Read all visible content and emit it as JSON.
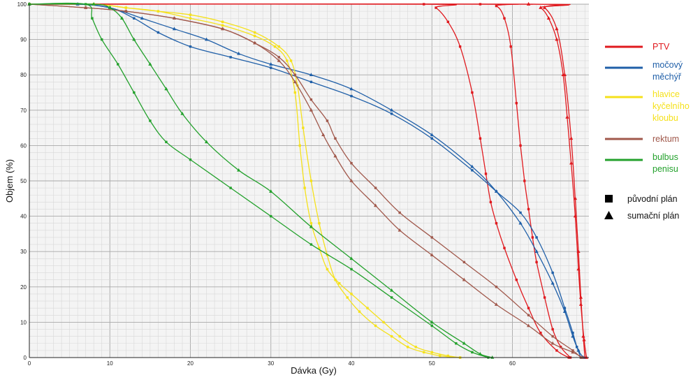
{
  "chart_data": {
    "type": "line",
    "xlabel": "Dávka (Gy)",
    "ylabel": "Objem (%)",
    "xlim": [
      0,
      69.5
    ],
    "ylim": [
      0,
      100
    ],
    "x_ticks": [
      0,
      10,
      20,
      30,
      40,
      50,
      60
    ],
    "y_ticks": [
      0,
      10,
      20,
      30,
      40,
      50,
      60,
      70,
      80,
      90,
      100
    ],
    "grid": true,
    "legend_position": "right",
    "marker_legend": [
      {
        "marker": "square",
        "label": "původní plán"
      },
      {
        "marker": "triangle",
        "label": "sumační plán"
      }
    ],
    "series": [
      {
        "name": "PTV",
        "legend_lines": [
          "PTV"
        ],
        "color": "#e0191e",
        "plan": "original",
        "x": [
          0,
          56,
          58,
          59,
          59.8,
          60.5,
          61,
          61.5,
          62,
          62.5,
          63,
          64,
          65,
          66,
          67.2
        ],
        "y": [
          100,
          100,
          99.5,
          96,
          88,
          72,
          60,
          50,
          42,
          34,
          27,
          17,
          8,
          3,
          0
        ]
      },
      {
        "name": "PTV",
        "color": "#e0191e",
        "plan": "summed",
        "x": [
          0,
          62,
          63.5,
          64.5,
          65.5,
          66.3,
          66.8,
          67.3,
          67.8,
          68.2,
          68.5,
          68.9,
          69.2
        ],
        "y": [
          100,
          100,
          99,
          96,
          90,
          80,
          68,
          55,
          40,
          25,
          15,
          5,
          0
        ]
      },
      {
        "name": "PTV",
        "color": "#e0191e",
        "plan": "original",
        "x": [
          0,
          49,
          50.5,
          52,
          53.5,
          55,
          56,
          56.7,
          57.3,
          58,
          59,
          60.5,
          62,
          63.5,
          65.5,
          67
        ],
        "y": [
          100,
          100,
          99,
          95,
          88,
          75,
          62,
          52,
          44,
          38,
          31,
          22,
          14,
          7,
          2,
          0
        ]
      },
      {
        "name": "PTV",
        "color": "#e0191e",
        "plan": "summed",
        "x": [
          0,
          62,
          64,
          65.5,
          66.5,
          67.3,
          67.8,
          68.2,
          68.5,
          68.8,
          69
        ],
        "y": [
          100,
          100,
          99,
          93,
          80,
          62,
          45,
          30,
          17,
          6,
          0
        ]
      },
      {
        "name": "močový měchýř",
        "legend_lines": [
          "močový",
          "měchýř"
        ],
        "color": "#1f5fa8",
        "plan": "original",
        "x": [
          0,
          6,
          10,
          13,
          16,
          20,
          25,
          30,
          35,
          40,
          45,
          50,
          55,
          58,
          61,
          63,
          65,
          66.5,
          67.5,
          68,
          68.5
        ],
        "y": [
          100,
          100,
          99,
          96,
          92,
          88,
          85,
          82,
          78,
          74,
          69,
          62,
          53,
          47,
          41,
          34,
          24,
          14,
          7,
          3,
          0
        ]
      },
      {
        "name": "močový měchýř",
        "color": "#1f5fa8",
        "plan": "summed",
        "x": [
          0,
          6,
          10,
          14,
          18,
          22,
          26,
          30,
          35,
          40,
          45,
          50,
          55,
          58,
          61,
          63,
          65,
          66.5,
          67.5,
          68.2,
          68.8
        ],
        "y": [
          100,
          100,
          99,
          96,
          93,
          90,
          86,
          83,
          80,
          76,
          70,
          63,
          54,
          47,
          38,
          30,
          21,
          13,
          6,
          2,
          0
        ]
      },
      {
        "name": "hlavice kyčelního kloubu",
        "legend_lines": [
          "hlavice",
          "kyčelního",
          "kloubu"
        ],
        "color": "#f5e11b",
        "plan": "original",
        "x": [
          0,
          8,
          12,
          16,
          20,
          24,
          28,
          30.5,
          32,
          33,
          33.6,
          34.2,
          35,
          36,
          37,
          38.5,
          40,
          42,
          44,
          46,
          48,
          50,
          52,
          53.5
        ],
        "y": [
          100,
          100,
          99,
          98,
          96,
          94,
          91,
          88,
          84,
          75,
          60,
          48,
          38,
          31,
          25,
          21,
          18,
          14,
          10,
          6,
          3,
          1.5,
          0.5,
          0
        ]
      },
      {
        "name": "hlavice kyčelního kloubu",
        "color": "#f5e11b",
        "plan": "original",
        "x": [
          0,
          8,
          12,
          16,
          20,
          24,
          28,
          31,
          32.5,
          33.3,
          34,
          35,
          36,
          37,
          38,
          39.5,
          41,
          43,
          45,
          47,
          49,
          51,
          53.5
        ],
        "y": [
          100,
          100,
          99,
          98,
          97,
          95,
          92,
          88,
          84,
          77,
          65,
          50,
          38,
          29,
          22,
          17,
          13,
          9,
          6,
          3,
          1.5,
          0.5,
          0
        ]
      },
      {
        "name": "rektum",
        "legend_lines": [
          "rektum"
        ],
        "color": "#a0584b",
        "plan": "original",
        "x": [
          0,
          7,
          12,
          18,
          24,
          28,
          31,
          33,
          35,
          37,
          38,
          40,
          43,
          46,
          50,
          54,
          58,
          62,
          65,
          67.5,
          68.5
        ],
        "y": [
          100,
          99,
          98,
          96,
          93,
          89,
          85,
          80,
          73,
          67,
          62,
          55,
          48,
          41,
          34,
          27,
          20,
          12,
          6,
          2,
          0
        ]
      },
      {
        "name": "rektum",
        "color": "#a0584b",
        "plan": "summed",
        "x": [
          0,
          7,
          12,
          18,
          24,
          28,
          31,
          33,
          35,
          36.5,
          38,
          40,
          43,
          46,
          50,
          54,
          58,
          62,
          65,
          67.5,
          68.7
        ],
        "y": [
          100,
          99,
          98,
          96,
          93,
          89,
          84,
          78,
          70,
          63,
          57,
          50,
          43,
          36,
          29,
          22,
          15,
          9,
          4,
          1.5,
          0
        ]
      },
      {
        "name": "bulbus penisu",
        "legend_lines": [
          "bulbus",
          "penisu"
        ],
        "color": "#23a12c",
        "plan": "original",
        "x": [
          0,
          7,
          7.8,
          9,
          11,
          13,
          15,
          17,
          20,
          25,
          30,
          35,
          40,
          45,
          50,
          53,
          55,
          57
        ],
        "y": [
          100,
          100,
          96,
          90,
          83,
          75,
          67,
          61,
          56,
          48,
          40,
          32,
          25,
          17,
          9,
          4,
          1.5,
          0
        ]
      },
      {
        "name": "bulbus penisu",
        "color": "#23a12c",
        "plan": "summed",
        "x": [
          0,
          8,
          10,
          11.5,
          13,
          15,
          17,
          19,
          22,
          26,
          30,
          35,
          40,
          45,
          50,
          54,
          56,
          57.5
        ],
        "y": [
          100,
          100,
          99,
          96,
          90,
          83,
          76,
          69,
          61,
          53,
          47,
          37,
          28,
          19,
          10,
          4,
          1,
          0
        ]
      }
    ]
  }
}
